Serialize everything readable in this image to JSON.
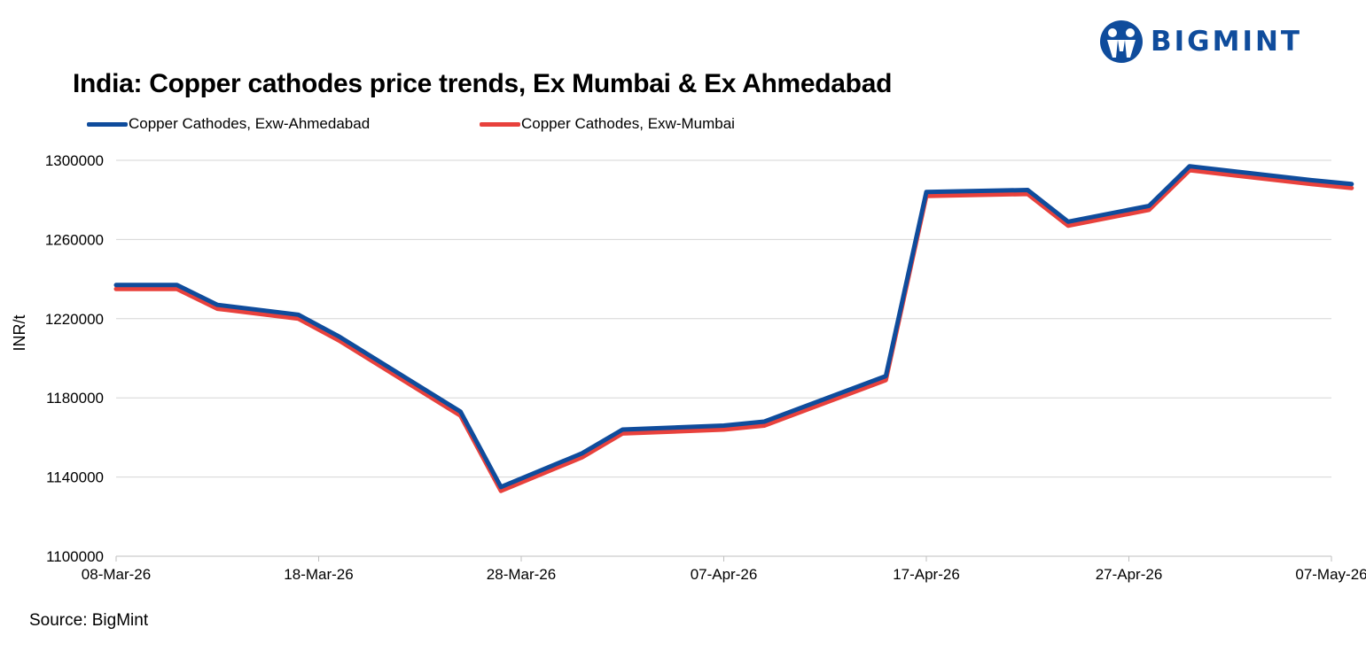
{
  "brand": {
    "name": "BIGMINT",
    "logo_icon": "bigmint-people-icon",
    "color": "#0f4c9c"
  },
  "source_note": "Source: BigMint",
  "chart_data": {
    "type": "line",
    "title": "India: Copper cathodes price trends, Ex Mumbai & Ex Ahmedabad",
    "xlabel": "",
    "ylabel": "INR/t",
    "ylim": [
      1100000,
      1300000
    ],
    "yticks": [
      1100000,
      1140000,
      1180000,
      1220000,
      1260000,
      1300000
    ],
    "ytick_labels": [
      "1100000",
      "1140000",
      "1180000",
      "1220000",
      "1260000",
      "1300000"
    ],
    "xticks": [
      "08-Mar-26",
      "18-Mar-26",
      "28-Mar-26",
      "07-Apr-26",
      "17-Apr-26",
      "27-Apr-26",
      "07-May-26"
    ],
    "x": [
      "08-Mar-26",
      "11-Mar-26",
      "13-Mar-26",
      "17-Mar-26",
      "19-Mar-26",
      "25-Mar-26",
      "27-Mar-26",
      "31-Mar-26",
      "02-Apr-26",
      "07-Apr-26",
      "09-Apr-26",
      "15-Apr-26",
      "17-Apr-26",
      "22-Apr-26",
      "24-Apr-26",
      "28-Apr-26",
      "30-Apr-26",
      "06-May-26",
      "08-May-26"
    ],
    "series": [
      {
        "name": "Copper Cathodes, Exw-Ahmedabad",
        "color": "#0f4c9c",
        "values": [
          1237000,
          1237000,
          1227000,
          1222000,
          1211000,
          1173000,
          1135000,
          1152000,
          1164000,
          1166000,
          1168000,
          1191000,
          1284000,
          1285000,
          1269000,
          1277000,
          1297000,
          1290000,
          1288000
        ]
      },
      {
        "name": "Copper Cathodes, Exw-Mumbai",
        "color": "#e8413c",
        "values": [
          1235000,
          1235000,
          1225000,
          1220000,
          1209000,
          1171000,
          1133000,
          1150000,
          1162000,
          1164000,
          1166000,
          1189000,
          1282000,
          1283000,
          1267000,
          1275000,
          1295000,
          1288000,
          1286000
        ]
      }
    ],
    "grid": true,
    "legend_position": "top-left"
  }
}
